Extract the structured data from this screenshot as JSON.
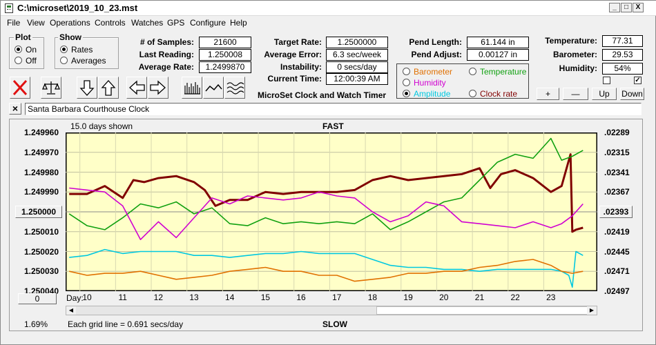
{
  "window": {
    "title": "C:\\microset\\2019_10_23.mst",
    "minimize": "_",
    "maximize": "□",
    "close": "X"
  },
  "menu": [
    "File",
    "View",
    "Operations",
    "Controls",
    "Watches",
    "GPS",
    "Configure",
    "Help"
  ],
  "plot_group": {
    "title": "Plot",
    "options": [
      "On",
      "Off"
    ],
    "selected": "On"
  },
  "show_group": {
    "title": "Show",
    "options": [
      "Rates",
      "Averages"
    ],
    "selected": "Rates"
  },
  "stats": {
    "samples_label": "# of Samples:",
    "samples": "21600",
    "last_label": "Last Reading:",
    "last": "1.250008",
    "avg_label": "Average Rate:",
    "avg": "1.2499870",
    "target_label": "Target Rate:",
    "target": "1.2500000",
    "avgerr_label": "Average Error:",
    "avgerr": "6.3 sec/week",
    "instab_label": "Instability:",
    "instab": "0 secs/day",
    "time_label": "Current Time:",
    "time": "12:00:39 AM",
    "pendlen_label": "Pend Length:",
    "pendlen": "61.144 in",
    "pendadj_label": "Pend Adjust:",
    "pendadj": "0.00127 in",
    "temp_label": "Temperature:",
    "temp": "77.31",
    "baro_label": "Barometer:",
    "baro": "29.53",
    "hum_label": "Humidity:",
    "hum": "54%"
  },
  "app_caption": "MicroSet Clock and Watch Timer",
  "series_select": [
    {
      "label": "Barometer",
      "color": "#e07000",
      "selected": false
    },
    {
      "label": "Temperature",
      "color": "#10a010",
      "selected": false
    },
    {
      "label": "Humidity",
      "color": "#d000d0",
      "selected": false
    },
    {
      "label": "Amplitude",
      "color": "#00c8e0",
      "selected": true
    },
    {
      "label": "Clock rate",
      "color": "#800000",
      "selected": false
    }
  ],
  "adjust_buttons": [
    "+",
    "—",
    "Up",
    "Down"
  ],
  "clock_name": "Santa Barbara Courthouse Clock",
  "clear_button": "×",
  "chart_header": {
    "days_shown": "15.0 days shown",
    "top_label": "FAST",
    "bottom_label": "SLOW",
    "grid_note": "Each grid line = 0.691 secs/day",
    "percent": "1.69%",
    "day_label": "Day:",
    "center_value": "1.250000",
    "right_center": ".02393",
    "zero_button": "0"
  },
  "chart_data": {
    "type": "line",
    "x_range": [
      9.4,
      24.3
    ],
    "day_ticks": [
      "10",
      "11",
      "12",
      "13",
      "14",
      "15",
      "16",
      "17",
      "18",
      "19",
      "20",
      "21",
      "22",
      "23"
    ],
    "y_left_ticks": [
      "1.249960",
      "1.249970",
      "1.249980",
      "1.249990",
      "1.250000",
      "1.250010",
      "1.250020",
      "1.250030",
      "1.250040"
    ],
    "y_left_range": [
      1.24996,
      1.25004
    ],
    "y_right_ticks": [
      ".02289",
      ".02315",
      ".02341",
      ".02367",
      ".02393",
      ".02419",
      ".02445",
      ".02471",
      ".02497"
    ],
    "series": [
      {
        "name": "Clock rate",
        "color": "#800000",
        "x": [
          9.5,
          10,
          10.5,
          11,
          11.3,
          11.6,
          12,
          12.5,
          13,
          13.3,
          13.6,
          14,
          14.5,
          15,
          15.5,
          16,
          16.5,
          17,
          17.5,
          18,
          18.5,
          19,
          19.5,
          20,
          20.5,
          21,
          21.3,
          21.6,
          22,
          22.5,
          23,
          23.3,
          23.55,
          23.6,
          23.7,
          23.9
        ],
        "y": [
          1.249991,
          1.249991,
          1.249987,
          1.249993,
          1.249984,
          1.249985,
          1.249983,
          1.249982,
          1.249985,
          1.249989,
          1.249997,
          1.249994,
          1.249994,
          1.24999,
          1.249991,
          1.24999,
          1.24999,
          1.24999,
          1.249989,
          1.249984,
          1.249982,
          1.249984,
          1.249983,
          1.249982,
          1.249981,
          1.249978,
          1.249988,
          1.249981,
          1.249979,
          1.249983,
          1.24999,
          1.249987,
          1.249971,
          1.25001,
          1.250009,
          1.250008
        ]
      },
      {
        "name": "Temperature",
        "color": "#10a010",
        "x": [
          9.5,
          10,
          10.5,
          11,
          11.5,
          12,
          12.5,
          13,
          13.5,
          14,
          14.5,
          15,
          15.5,
          16,
          16.5,
          17,
          17.5,
          18,
          18.5,
          19,
          19.5,
          20,
          20.5,
          21,
          21.5,
          22,
          22.5,
          23,
          23.3,
          23.6,
          23.9
        ],
        "y": [
          1.250001,
          1.250007,
          1.250009,
          1.250003,
          1.249996,
          1.249998,
          1.249995,
          1.250001,
          1.249998,
          1.250006,
          1.250007,
          1.250003,
          1.250006,
          1.250005,
          1.250006,
          1.250005,
          1.250006,
          1.250001,
          1.250009,
          1.250005,
          1.25,
          1.249995,
          1.249993,
          1.249984,
          1.249975,
          1.249971,
          1.249973,
          1.249963,
          1.249974,
          1.249972,
          1.249969
        ]
      },
      {
        "name": "Humidity",
        "color": "#d000d0",
        "x": [
          9.5,
          10,
          10.5,
          11,
          11.5,
          12,
          12.5,
          13,
          13.5,
          14,
          14.5,
          15,
          15.5,
          16,
          16.5,
          17,
          17.5,
          18,
          18.5,
          19,
          19.5,
          20,
          20.5,
          21,
          21.5,
          22,
          22.5,
          23,
          23.3,
          23.6,
          23.9
        ],
        "y": [
          1.249988,
          1.249989,
          1.24999,
          1.249997,
          1.250014,
          1.250005,
          1.250013,
          1.250003,
          1.249993,
          1.249996,
          1.249992,
          1.249993,
          1.249994,
          1.249993,
          1.24999,
          1.249992,
          1.249993,
          1.25,
          1.250005,
          1.250002,
          1.249995,
          1.249997,
          1.250005,
          1.250006,
          1.250007,
          1.250008,
          1.250005,
          1.250008,
          1.250006,
          1.250002,
          1.249996
        ]
      },
      {
        "name": "Amplitude",
        "color": "#00c8e0",
        "x": [
          9.5,
          10,
          10.5,
          11,
          11.5,
          12,
          12.5,
          13,
          13.5,
          14,
          14.5,
          15,
          15.5,
          16,
          16.5,
          17,
          17.5,
          18,
          18.5,
          19,
          19.5,
          20,
          20.5,
          21,
          21.5,
          22,
          22.5,
          23,
          23.3,
          23.5,
          23.6,
          23.7,
          23.9
        ],
        "y": [
          1.250023,
          1.250022,
          1.250019,
          1.250021,
          1.25002,
          1.25002,
          1.25002,
          1.250022,
          1.250022,
          1.250023,
          1.250022,
          1.250021,
          1.250021,
          1.25002,
          1.250021,
          1.250021,
          1.250021,
          1.250024,
          1.250027,
          1.250028,
          1.250028,
          1.250029,
          1.250029,
          1.25003,
          1.250029,
          1.250029,
          1.250029,
          1.250029,
          1.25003,
          1.250032,
          1.250038,
          1.25002,
          1.250022
        ]
      },
      {
        "name": "Barometer",
        "color": "#e07000",
        "x": [
          9.5,
          10,
          10.5,
          11,
          11.5,
          12,
          12.5,
          13,
          13.5,
          14,
          14.5,
          15,
          15.5,
          16,
          16.5,
          17,
          17.5,
          18,
          18.5,
          19,
          19.5,
          20,
          20.5,
          21,
          21.5,
          22,
          22.5,
          23,
          23.3,
          23.6,
          23.9
        ],
        "y": [
          1.25003,
          1.250032,
          1.250031,
          1.250031,
          1.25003,
          1.250032,
          1.250034,
          1.250033,
          1.250032,
          1.25003,
          1.250029,
          1.250028,
          1.25003,
          1.25003,
          1.250032,
          1.250032,
          1.250035,
          1.250034,
          1.250033,
          1.250031,
          1.250031,
          1.25003,
          1.25003,
          1.250028,
          1.250027,
          1.250025,
          1.250024,
          1.250027,
          1.25003,
          1.250031,
          1.25003
        ]
      }
    ]
  }
}
